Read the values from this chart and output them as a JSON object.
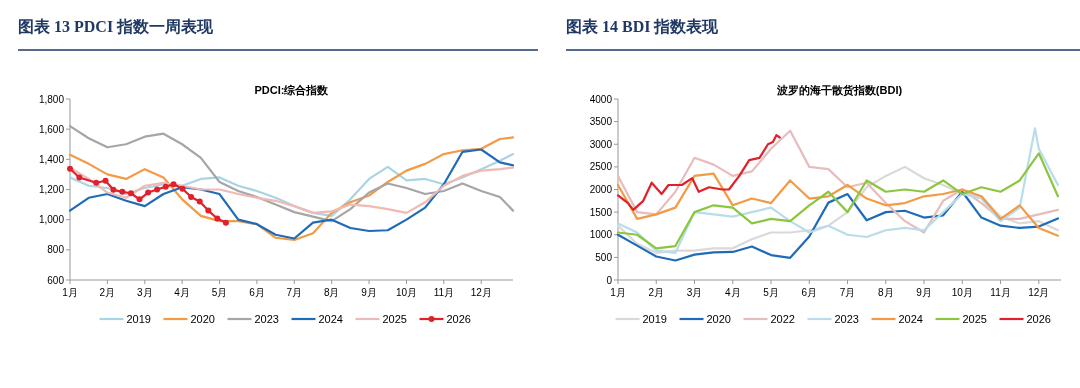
{
  "chart_data": [
    {
      "type": "line",
      "title": "图表 13   PDCI 指数一周表现",
      "subtitle": "PDCI:综合指数",
      "legend": "bottom",
      "grid": false,
      "xlim": [
        1,
        12.85
      ],
      "xticks": [
        {
          "value": 1,
          "label": "1月"
        },
        {
          "value": 2,
          "label": "2月"
        },
        {
          "value": 3,
          "label": "3月"
        },
        {
          "value": 4,
          "label": "4月"
        },
        {
          "value": 5,
          "label": "5月"
        },
        {
          "value": 6,
          "label": "6月"
        },
        {
          "value": 7,
          "label": "7月"
        },
        {
          "value": 8,
          "label": "8月"
        },
        {
          "value": 9,
          "label": "9月"
        },
        {
          "value": 10,
          "label": "10月"
        },
        {
          "value": 11,
          "label": "11月"
        },
        {
          "value": 12,
          "label": "12月"
        }
      ],
      "ylim": [
        600,
        1800
      ],
      "yticks": [
        {
          "value": 600,
          "label": "600"
        },
        {
          "value": 800,
          "label": "800"
        },
        {
          "value": 1000,
          "label": "1,000"
        },
        {
          "value": 1200,
          "label": "1,200"
        },
        {
          "value": 1400,
          "label": "1,400"
        },
        {
          "value": 1600,
          "label": "1,600"
        },
        {
          "value": 1800,
          "label": "1,800"
        }
      ],
      "x": [
        1,
        1.5,
        2,
        2.5,
        3,
        3.5,
        4,
        4.5,
        5,
        5.5,
        6,
        6.5,
        7,
        7.5,
        8,
        8.5,
        9,
        9.5,
        10,
        10.5,
        11,
        11.5,
        12,
        12.5,
        12.85
      ],
      "series": [
        {
          "name": "2019",
          "color": "#a9d4e3",
          "values": [
            1280,
            1225,
            1210,
            1170,
            1210,
            1235,
            1225,
            1270,
            1280,
            1225,
            1190,
            1145,
            1090,
            1045,
            1025,
            1135,
            1270,
            1350,
            1260,
            1270,
            1235,
            1280,
            1335,
            1390,
            1435
          ]
        },
        {
          "name": "2020",
          "color": "#f39a45",
          "values": [
            1430,
            1370,
            1300,
            1270,
            1335,
            1280,
            1135,
            1025,
            990,
            990,
            970,
            880,
            865,
            910,
            1045,
            1115,
            1160,
            1250,
            1325,
            1370,
            1435,
            1460,
            1470,
            1535,
            1545
          ]
        },
        {
          "name": "2023",
          "color": "#a6a6a6",
          "values": [
            1620,
            1540,
            1480,
            1500,
            1550,
            1570,
            1500,
            1410,
            1250,
            1190,
            1150,
            1100,
            1050,
            1020,
            990,
            1070,
            1180,
            1240,
            1210,
            1170,
            1190,
            1240,
            1190,
            1150,
            1060
          ]
        },
        {
          "name": "2024",
          "color": "#1f6bb8",
          "values": [
            1060,
            1145,
            1170,
            1125,
            1090,
            1170,
            1215,
            1200,
            1170,
            1000,
            970,
            900,
            875,
            980,
            1000,
            945,
            925,
            930,
            1000,
            1080,
            1235,
            1450,
            1465,
            1380,
            1360
          ]
        },
        {
          "name": "2025",
          "color": "#f0b9b3",
          "values": [
            1345,
            1270,
            1180,
            1145,
            1225,
            1245,
            1225,
            1200,
            1200,
            1170,
            1145,
            1125,
            1090,
            1045,
            1055,
            1100,
            1090,
            1070,
            1045,
            1115,
            1225,
            1290,
            1325,
            1335,
            1345
          ]
        },
        {
          "name": "2026",
          "color": "#e0202a",
          "marker": "circle",
          "x": [
            1,
            1.25,
            1.7,
            1.95,
            2.16,
            2.4,
            2.63,
            2.86,
            3.09,
            3.33,
            3.56,
            3.77,
            4.01,
            4.24,
            4.47,
            4.7,
            4.94,
            5.17
          ],
          "values": [
            1338,
            1280,
            1245,
            1258,
            1198,
            1185,
            1175,
            1135,
            1180,
            1200,
            1218,
            1235,
            1205,
            1150,
            1120,
            1060,
            1008,
            980
          ]
        }
      ]
    },
    {
      "type": "line",
      "title": "图表 14   BDI 指数表现",
      "subtitle": "波罗的海干散货指数(BDI)",
      "legend": "bottom",
      "grid": false,
      "xlim": [
        1,
        12.58
      ],
      "xticks": [
        {
          "value": 1,
          "label": "1月"
        },
        {
          "value": 2,
          "label": "2月"
        },
        {
          "value": 3,
          "label": "3月"
        },
        {
          "value": 4,
          "label": "4月"
        },
        {
          "value": 5,
          "label": "5月"
        },
        {
          "value": 6,
          "label": "6月"
        },
        {
          "value": 7,
          "label": "7月"
        },
        {
          "value": 8,
          "label": "8月"
        },
        {
          "value": 9,
          "label": "9月"
        },
        {
          "value": 10,
          "label": "10月"
        },
        {
          "value": 11,
          "label": "11月"
        },
        {
          "value": 12,
          "label": "12月"
        }
      ],
      "ylim": [
        0,
        4000
      ],
      "yticks": [
        0,
        500,
        1000,
        1500,
        2000,
        2500,
        3000,
        3500,
        4000
      ],
      "x": [
        1,
        1.5,
        2,
        2.5,
        3,
        3.5,
        4,
        4.5,
        5,
        5.5,
        6,
        6.5,
        7,
        7.5,
        8,
        8.5,
        9,
        9.5,
        10,
        10.5,
        11,
        11.5,
        12,
        12.5
      ],
      "series": [
        {
          "name": "2019",
          "color": "#d9d9d9",
          "values": [
            1200,
            800,
            600,
            650,
            650,
            700,
            700,
            900,
            1050,
            1050,
            1100,
            1200,
            1500,
            2050,
            2300,
            2500,
            2250,
            2100,
            1900,
            1850,
            1400,
            1250,
            1300,
            1100
          ]
        },
        {
          "name": "2020",
          "color": "#1f6bb8",
          "values": [
            1000,
            760,
            520,
            430,
            560,
            610,
            620,
            740,
            550,
            490,
            960,
            1710,
            1900,
            1320,
            1500,
            1530,
            1380,
            1430,
            1950,
            1380,
            1200,
            1150,
            1180,
            1360
          ]
        },
        {
          "name": "2022",
          "color": "#e8bcbc",
          "values": [
            2300,
            1500,
            1450,
            1950,
            2700,
            2550,
            2300,
            2400,
            2900,
            3300,
            2500,
            2450,
            2050,
            2150,
            1700,
            1300,
            1050,
            1750,
            2000,
            1700,
            1350,
            1350,
            1450,
            1550
          ]
        },
        {
          "name": "2023",
          "color": "#b8dcea",
          "x": [
            1,
            1.5,
            2,
            2.5,
            3,
            3.5,
            4,
            4.5,
            5,
            5.5,
            6,
            6.5,
            7,
            7.5,
            8,
            8.5,
            9,
            9.5,
            10,
            10.5,
            11,
            11.5,
            11.9,
            12,
            12.5
          ],
          "values": [
            1250,
            1050,
            650,
            600,
            1500,
            1450,
            1400,
            1500,
            1600,
            1300,
            1050,
            1200,
            1000,
            950,
            1100,
            1150,
            1100,
            1500,
            1900,
            1800,
            1300,
            1600,
            3350,
            2900,
            2100
          ]
        },
        {
          "name": "2024",
          "color": "#f39a45",
          "values": [
            2100,
            1350,
            1450,
            1600,
            2300,
            2350,
            1650,
            1800,
            1700,
            2200,
            1800,
            1850,
            2100,
            1800,
            1650,
            1700,
            1850,
            1900,
            2000,
            1850,
            1350,
            1650,
            1150,
            980
          ]
        },
        {
          "name": "2025",
          "color": "#8cc63f",
          "values": [
            1050,
            1000,
            700,
            750,
            1500,
            1650,
            1600,
            1250,
            1350,
            1300,
            1650,
            1950,
            1500,
            2200,
            1950,
            2000,
            1950,
            2200,
            1900,
            2050,
            1950,
            2200,
            2800,
            1850
          ]
        },
        {
          "name": "2026",
          "color": "#e0202a",
          "x": [
            1,
            1.26,
            1.4,
            1.66,
            1.88,
            2.14,
            2.32,
            2.67,
            2.94,
            3.11,
            3.38,
            3.73,
            3.9,
            4.17,
            4.43,
            4.7,
            4.92,
            5.05,
            5.14,
            5.23
          ],
          "values": [
            1870,
            1700,
            1550,
            1750,
            2150,
            1900,
            2100,
            2100,
            2250,
            1950,
            2050,
            2000,
            2000,
            2300,
            2650,
            2700,
            3000,
            3050,
            3200,
            3150
          ]
        }
      ]
    }
  ]
}
